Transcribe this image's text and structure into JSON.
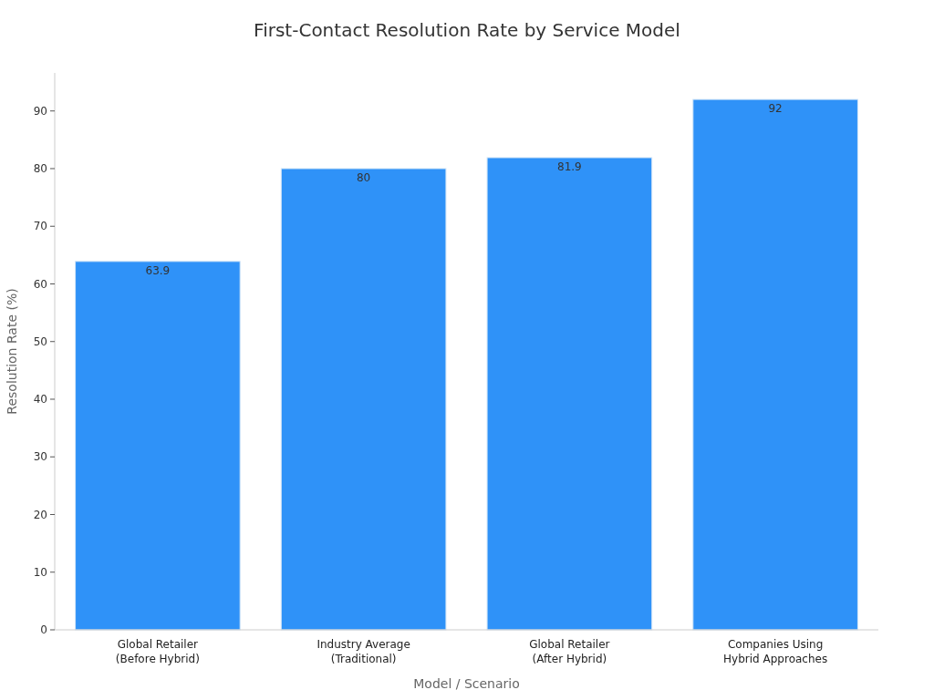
{
  "chart_data": {
    "type": "bar",
    "title": "First-Contact Resolution Rate by Service Model",
    "xlabel": "Model / Scenario",
    "ylabel": "Resolution Rate (%)",
    "categories": [
      "Global Retailer\n(Before Hybrid)",
      "Industry Average\n(Traditional)",
      "Global Retailer\n(After Hybrid)",
      "Companies Using\nHybrid Approaches"
    ],
    "values": [
      63.9,
      80,
      81.9,
      92
    ],
    "color": "#2f92f8",
    "ylim": [
      0,
      96.6
    ],
    "yticks": [
      0,
      10,
      20,
      30,
      40,
      50,
      60,
      70,
      80,
      90
    ],
    "grid": false,
    "data_labels": true
  }
}
